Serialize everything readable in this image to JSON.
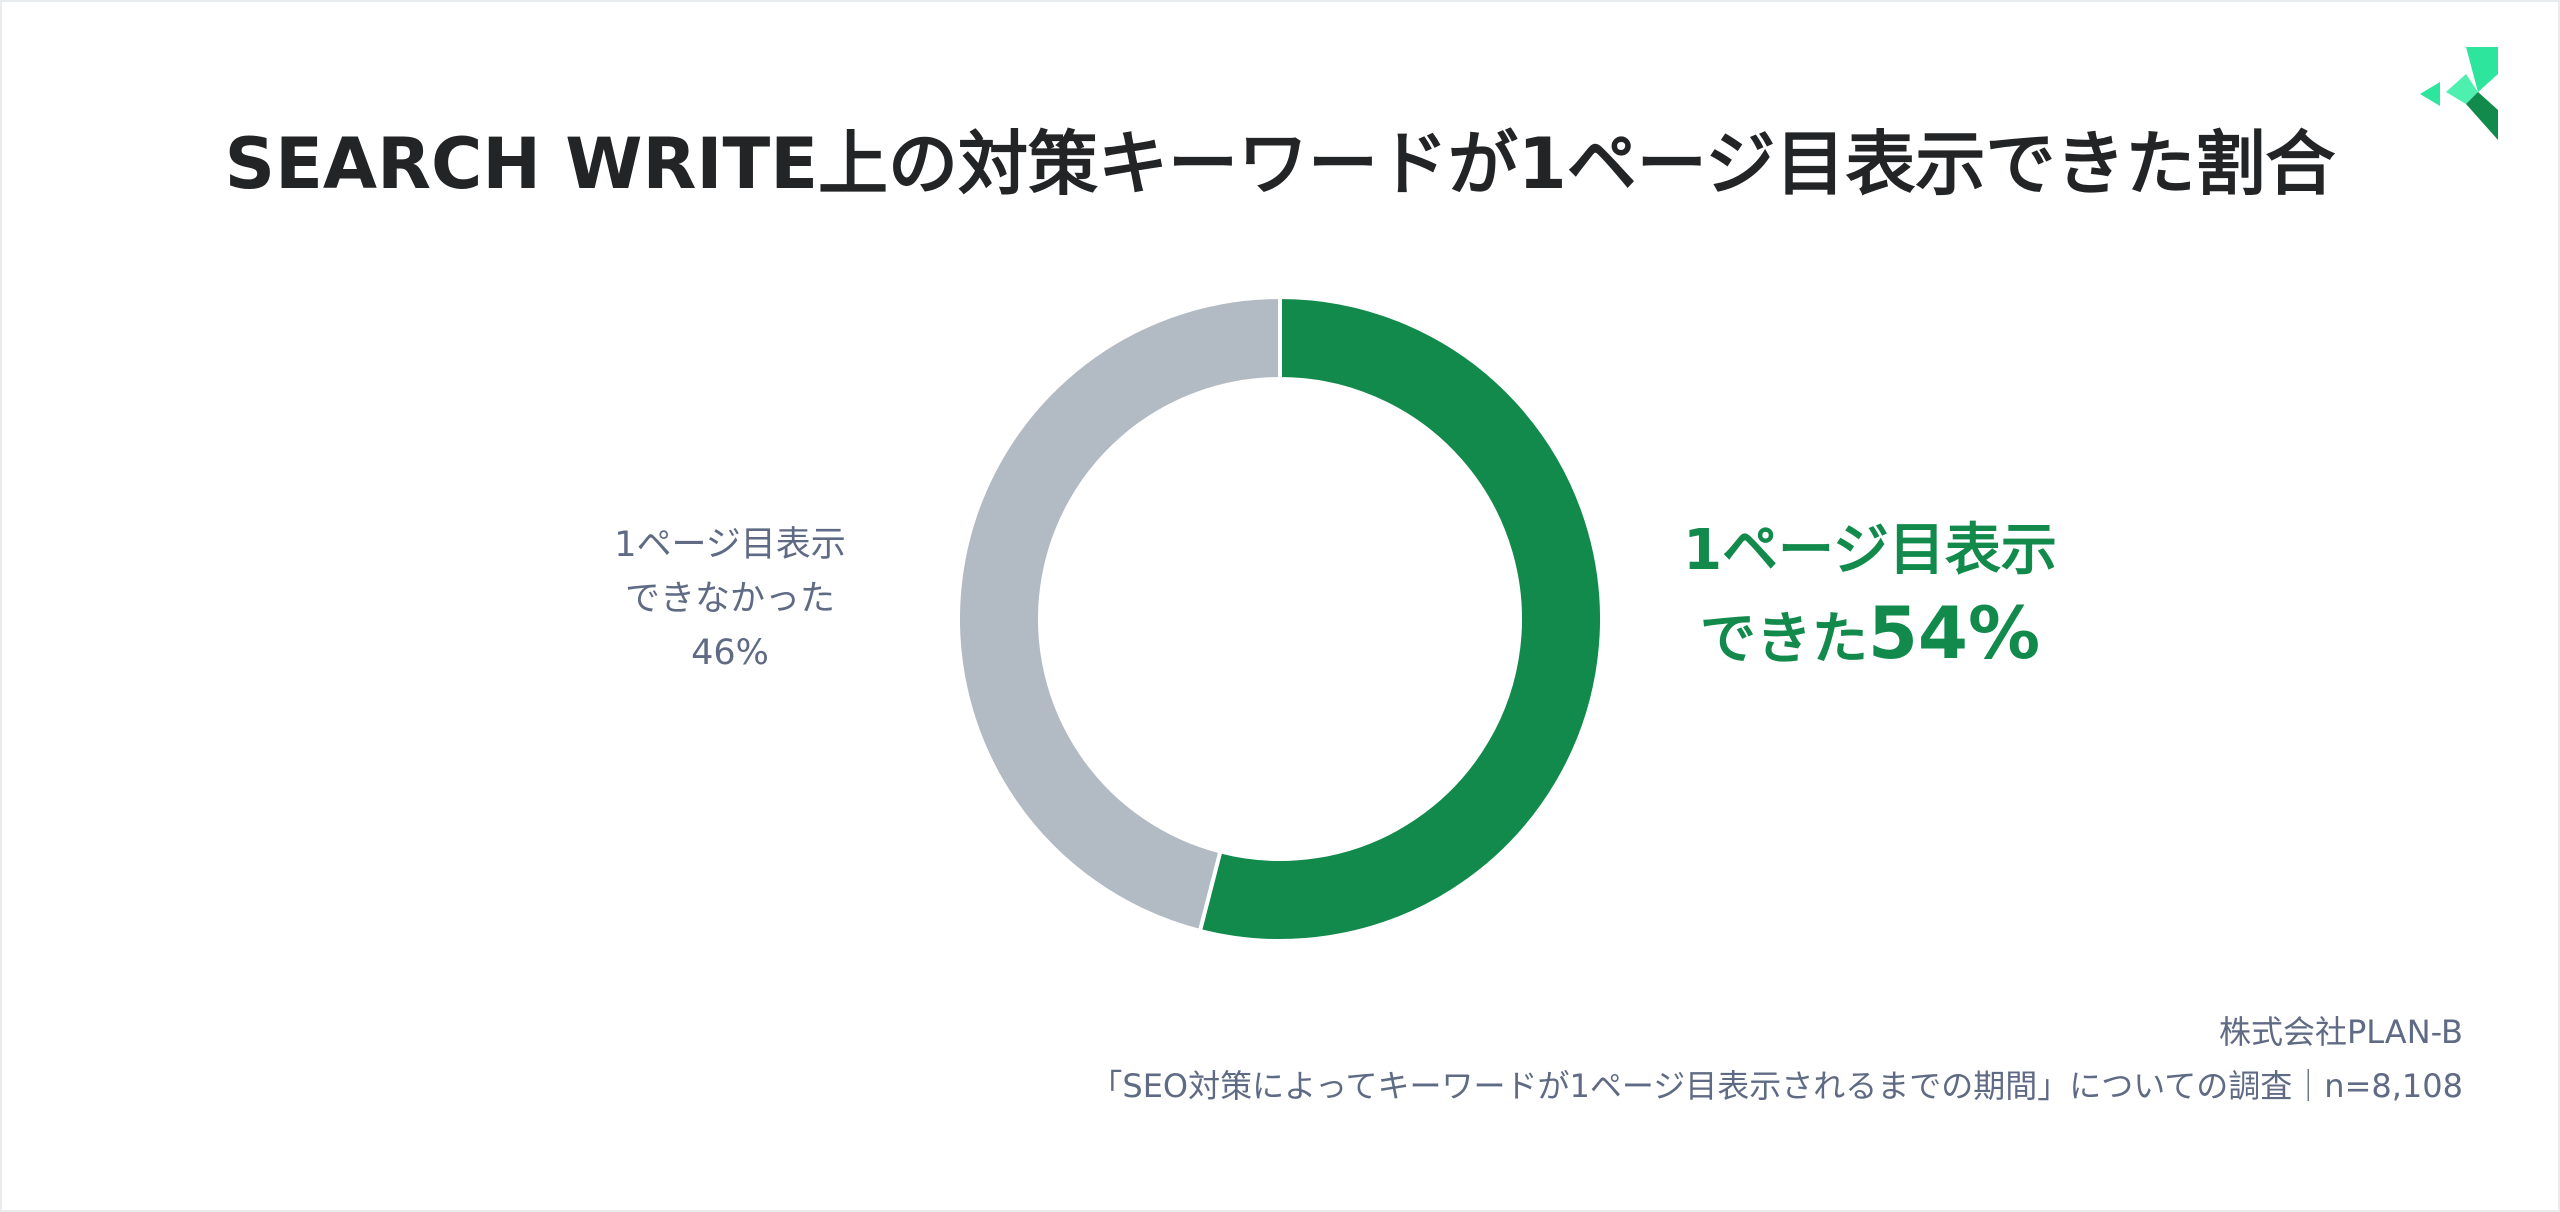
{
  "chart_data": {
    "type": "pie",
    "title": "SEARCH WRITE上の対策キーワードが1ページ目表示できた割合",
    "slices": [
      {
        "label_line1": "1ページ目表示",
        "label_line2": "できた",
        "value": 54,
        "value_text": "54%",
        "color": "#128a4c"
      },
      {
        "label_line1": "1ページ目表示",
        "label_line2": "できなかった",
        "value": 46,
        "value_text": "46%",
        "color": "#b2bac3"
      }
    ],
    "start_angle_deg": 0,
    "direction": "clockwise",
    "style": "donut"
  },
  "source": {
    "company": "株式会社PLAN-B",
    "survey": "「SEO対策によってキーワードが1ページ目表示されるまでの期間」についての調査｜n=8,108"
  },
  "logo": {
    "name": "plan-b-logo-icon",
    "colors": [
      "#2ee59d",
      "#128a4c"
    ]
  }
}
